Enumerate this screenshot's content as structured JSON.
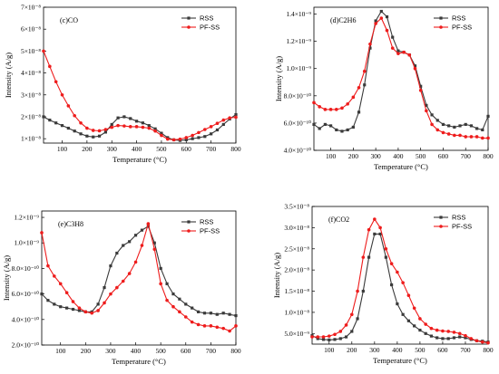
{
  "colors": {
    "RSS": "#3a3a3a",
    "PF-SS": "#ee1c1c"
  },
  "chart_data": [
    {
      "type": "line",
      "title": "(c)CO",
      "xlabel": "Temperature (°C)",
      "ylabel": "Intensity (A/g)",
      "xlim": [
        25,
        800
      ],
      "ylim": [
        0.8,
        7.0
      ],
      "y_exponent": -8,
      "xticks": [
        100,
        200,
        300,
        400,
        500,
        600,
        700,
        800
      ],
      "yticks": [
        1,
        2,
        3,
        4,
        5,
        6,
        7
      ],
      "ytick_labels": [
        "1×10⁻⁸",
        "2×10⁻⁸",
        "3×10⁻⁸",
        "4×10⁻⁸",
        "5×10⁻⁸",
        "6×10⁻⁸",
        "7×10⁻⁸"
      ],
      "legend": "top-right",
      "series": [
        {
          "name": "RSS",
          "x": [
            25,
            50,
            75,
            100,
            125,
            150,
            175,
            200,
            225,
            250,
            275,
            300,
            325,
            350,
            375,
            400,
            425,
            450,
            475,
            500,
            525,
            550,
            575,
            600,
            625,
            650,
            675,
            700,
            725,
            750,
            775,
            800
          ],
          "y": [
            2.0,
            1.85,
            1.72,
            1.6,
            1.48,
            1.35,
            1.22,
            1.12,
            1.08,
            1.12,
            1.3,
            1.65,
            1.95,
            2.0,
            1.92,
            1.8,
            1.72,
            1.6,
            1.45,
            1.25,
            1.05,
            0.95,
            0.92,
            0.95,
            1.0,
            1.05,
            1.1,
            1.22,
            1.4,
            1.65,
            1.9,
            2.1
          ]
        },
        {
          "name": "PF-SS",
          "x": [
            25,
            50,
            75,
            100,
            125,
            150,
            175,
            200,
            225,
            250,
            275,
            300,
            325,
            350,
            375,
            400,
            425,
            450,
            475,
            500,
            525,
            550,
            575,
            600,
            625,
            650,
            675,
            700,
            725,
            750,
            775,
            800
          ],
          "y": [
            5.0,
            4.3,
            3.6,
            3.0,
            2.5,
            2.05,
            1.72,
            1.48,
            1.38,
            1.36,
            1.42,
            1.52,
            1.6,
            1.58,
            1.55,
            1.55,
            1.52,
            1.48,
            1.35,
            1.15,
            0.98,
            0.95,
            0.98,
            1.05,
            1.15,
            1.28,
            1.42,
            1.55,
            1.7,
            1.85,
            1.95,
            1.98
          ]
        }
      ]
    },
    {
      "type": "line",
      "title": "(d)C2H6",
      "xlabel": "Temperature (°C)",
      "ylabel": "Intensity (A/g)",
      "xlim": [
        25,
        800
      ],
      "ylim": [
        4.0,
        14.5
      ],
      "y_exponent": -10,
      "xticks": [
        100,
        200,
        300,
        400,
        500,
        600,
        700,
        800
      ],
      "yticks": [
        4,
        6,
        8,
        10,
        12,
        14
      ],
      "ytick_labels": [
        "4.0×10⁻¹⁰",
        "6.0×10⁻¹⁰",
        "8.0×10⁻¹⁰",
        "1.0×10⁻⁹",
        "1.2×10⁻⁹",
        "1.4×10⁻⁹"
      ],
      "legend": "top-right",
      "series": [
        {
          "name": "RSS",
          "x": [
            25,
            50,
            75,
            100,
            125,
            150,
            175,
            200,
            225,
            250,
            275,
            300,
            325,
            350,
            375,
            400,
            425,
            450,
            475,
            500,
            525,
            550,
            575,
            600,
            625,
            650,
            675,
            700,
            725,
            750,
            775,
            800
          ],
          "y": [
            5.9,
            5.6,
            5.9,
            5.8,
            5.5,
            5.4,
            5.5,
            5.7,
            6.8,
            8.8,
            11.5,
            13.5,
            14.2,
            13.8,
            12.3,
            11.3,
            11.2,
            11.0,
            10.2,
            8.7,
            7.3,
            6.6,
            6.2,
            5.9,
            5.8,
            5.7,
            5.8,
            5.9,
            5.8,
            5.6,
            5.5,
            6.5
          ]
        },
        {
          "name": "PF-SS",
          "x": [
            25,
            50,
            75,
            100,
            125,
            150,
            175,
            200,
            225,
            250,
            275,
            300,
            325,
            350,
            375,
            400,
            425,
            450,
            475,
            500,
            525,
            550,
            575,
            600,
            625,
            650,
            675,
            700,
            725,
            750,
            775,
            800
          ],
          "y": [
            7.5,
            7.2,
            7.0,
            7.0,
            7.0,
            7.1,
            7.4,
            7.9,
            8.6,
            9.8,
            11.8,
            13.3,
            13.7,
            12.8,
            11.5,
            11.1,
            11.2,
            11.0,
            10.0,
            8.4,
            6.9,
            5.9,
            5.5,
            5.3,
            5.2,
            5.1,
            5.1,
            5.0,
            5.0,
            5.0,
            4.9,
            4.9
          ]
        }
      ]
    },
    {
      "type": "line",
      "title": "(e)C3H8",
      "xlabel": "Temperature (°C)",
      "ylabel": "Intensity (A/g)",
      "xlim": [
        25,
        800
      ],
      "ylim": [
        2.0,
        12.5
      ],
      "y_exponent": -10,
      "xticks": [
        100,
        200,
        300,
        400,
        500,
        600,
        700,
        800
      ],
      "yticks": [
        2,
        4,
        6,
        8,
        10,
        12
      ],
      "ytick_labels": [
        "2.0×10⁻¹⁰",
        "4.0×10⁻¹⁰",
        "6.0×10⁻¹⁰",
        "8.0×10⁻¹⁰",
        "1.0×10⁻⁹",
        "1.2×10⁻⁹"
      ],
      "legend": "top-right",
      "series": [
        {
          "name": "RSS",
          "x": [
            25,
            50,
            75,
            100,
            125,
            150,
            175,
            200,
            225,
            250,
            275,
            300,
            325,
            350,
            375,
            400,
            425,
            450,
            475,
            500,
            525,
            550,
            575,
            600,
            625,
            650,
            675,
            700,
            725,
            750,
            775,
            800
          ],
          "y": [
            6.0,
            5.5,
            5.2,
            5.0,
            4.9,
            4.8,
            4.7,
            4.6,
            4.6,
            5.2,
            6.5,
            8.2,
            9.2,
            9.8,
            10.1,
            10.6,
            11.0,
            11.3,
            10.0,
            8.0,
            6.8,
            6.0,
            5.6,
            5.2,
            4.9,
            4.6,
            4.5,
            4.5,
            4.4,
            4.5,
            4.4,
            4.3
          ]
        },
        {
          "name": "PF-SS",
          "x": [
            25,
            50,
            75,
            100,
            125,
            150,
            175,
            200,
            225,
            250,
            275,
            300,
            325,
            350,
            375,
            400,
            425,
            450,
            475,
            500,
            525,
            550,
            575,
            600,
            625,
            650,
            675,
            700,
            725,
            750,
            775,
            800
          ],
          "y": [
            10.8,
            8.2,
            7.4,
            6.8,
            6.1,
            5.4,
            4.9,
            4.6,
            4.5,
            4.7,
            5.3,
            6.0,
            6.5,
            7.0,
            7.6,
            8.5,
            9.8,
            11.5,
            9.5,
            6.8,
            5.5,
            5.0,
            4.6,
            4.2,
            3.8,
            3.6,
            3.5,
            3.5,
            3.4,
            3.3,
            3.1,
            3.5
          ]
        }
      ]
    },
    {
      "type": "line",
      "title": "(f)CO2",
      "xlabel": "Temperature (°C)",
      "ylabel": "Intensity (A/g)",
      "xlim": [
        25,
        800
      ],
      "ylim": [
        0.25,
        3.5
      ],
      "y_exponent": -8,
      "xticks": [
        100,
        200,
        300,
        400,
        500,
        600,
        700,
        800
      ],
      "yticks": [
        0.5,
        1.0,
        1.5,
        2.0,
        2.5,
        3.0,
        3.5
      ],
      "ytick_labels": [
        "5.0×10⁻⁹",
        "1.0×10⁻⁸",
        "1.5×10⁻⁸",
        "2.0×10⁻⁸",
        "2.5×10⁻⁸",
        "3.0×10⁻⁸",
        "3.5×10⁻⁸"
      ],
      "legend": "top-right",
      "series": [
        {
          "name": "RSS",
          "x": [
            25,
            50,
            75,
            100,
            125,
            150,
            175,
            200,
            225,
            250,
            275,
            300,
            325,
            350,
            375,
            400,
            425,
            450,
            475,
            500,
            525,
            550,
            575,
            600,
            625,
            650,
            675,
            700,
            725,
            750,
            775,
            800
          ],
          "y": [
            0.45,
            0.38,
            0.36,
            0.35,
            0.36,
            0.38,
            0.42,
            0.55,
            0.85,
            1.5,
            2.3,
            2.85,
            2.85,
            2.3,
            1.65,
            1.2,
            0.95,
            0.8,
            0.68,
            0.58,
            0.5,
            0.44,
            0.4,
            0.38,
            0.38,
            0.4,
            0.42,
            0.4,
            0.36,
            0.33,
            0.32,
            0.3
          ]
        },
        {
          "name": "PF-SS",
          "x": [
            25,
            50,
            75,
            100,
            125,
            150,
            175,
            200,
            225,
            250,
            275,
            300,
            325,
            350,
            375,
            400,
            425,
            450,
            475,
            500,
            525,
            550,
            575,
            600,
            625,
            650,
            675,
            700,
            725,
            750,
            775,
            800
          ],
          "y": [
            0.42,
            0.42,
            0.42,
            0.44,
            0.48,
            0.55,
            0.7,
            0.95,
            1.5,
            2.3,
            2.95,
            3.2,
            3.0,
            2.5,
            2.15,
            1.95,
            1.7,
            1.4,
            1.1,
            0.85,
            0.72,
            0.62,
            0.58,
            0.56,
            0.55,
            0.53,
            0.5,
            0.45,
            0.38,
            0.33,
            0.3,
            0.28
          ]
        }
      ]
    }
  ]
}
